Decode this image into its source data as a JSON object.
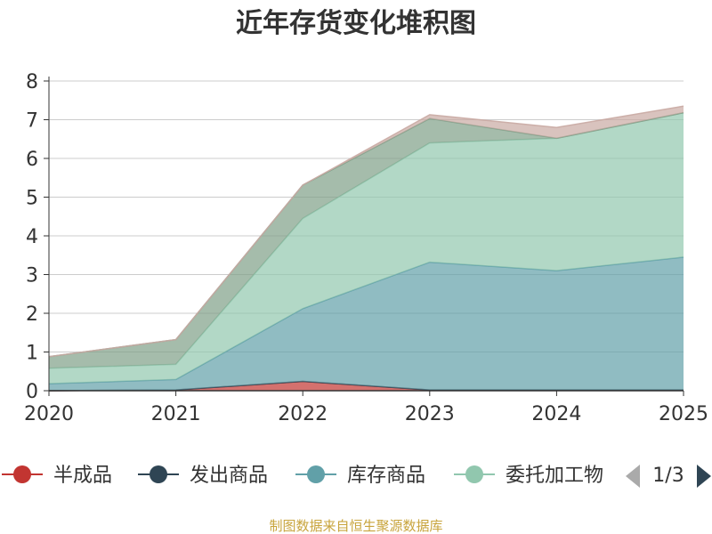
{
  "chart_data": {
    "type": "area",
    "stacked": true,
    "title": "近年存货变化堆积图",
    "ylabel": "",
    "ylim": [
      0,
      8
    ],
    "yticks": [
      0,
      1,
      2,
      3,
      4,
      5,
      6,
      7,
      8
    ],
    "grid": true,
    "categories": [
      "2020",
      "2021",
      "2022",
      "2023",
      "2024",
      "2025"
    ],
    "series": [
      {
        "name": "半成品",
        "color": "#c23531",
        "values": [
          0.0,
          0.02,
          0.24,
          0.02,
          0.02,
          0.02
        ]
      },
      {
        "name": "发出商品",
        "color": "#2f4554",
        "values": [
          0.0,
          0.0,
          0.0,
          0.0,
          0.0,
          0.0
        ]
      },
      {
        "name": "库存商品",
        "color": "#61a0a8",
        "values": [
          0.18,
          0.27,
          1.88,
          3.3,
          3.08,
          3.43
        ]
      },
      {
        "name": "委托加工物资",
        "color": "#91c7ae",
        "values": [
          0.4,
          0.39,
          2.33,
          3.08,
          3.42,
          3.73
        ]
      },
      {
        "name": "",
        "color": "#7f9f88",
        "values": [
          0.3,
          0.64,
          0.86,
          0.63,
          0.0,
          0.0
        ]
      },
      {
        "name": "",
        "color": "#c9aaa3",
        "values": [
          0.0,
          0.0,
          0.0,
          0.1,
          0.28,
          0.17
        ]
      }
    ],
    "legend": {
      "placement": "bottom",
      "visible_items": [
        "半成品",
        "发出商品",
        "库存商品",
        "委托加工物"
      ],
      "page_indicator": "1/3"
    }
  },
  "source_text": "制图数据来自恒生聚源数据库"
}
